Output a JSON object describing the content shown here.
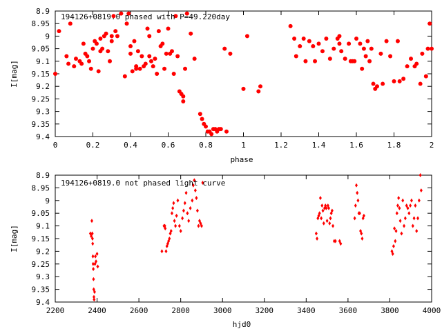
{
  "chart_data": [
    {
      "type": "scatter",
      "title": "194126+0819.0 phased with P=49.220day",
      "xlabel": "phase",
      "ylabel": "I[mag]",
      "xlim": [
        0,
        2
      ],
      "ylim": [
        9.4,
        8.9
      ],
      "y_inverted": true,
      "xticks": [
        "0",
        "0.2",
        "0.4",
        "0.6",
        "0.8",
        "1",
        "1.2",
        "1.4",
        "1.6",
        "1.8",
        "2"
      ],
      "yticks": [
        "8.9",
        "8.95",
        "9",
        "9.05",
        "9.1",
        "9.15",
        "9.2",
        "9.25",
        "9.3",
        "9.35",
        "9.4"
      ],
      "marker": "filled-circle",
      "color": "#ff0000",
      "grid": false,
      "series": [
        {
          "x": [
            0.0,
            0.02,
            0.06,
            0.07,
            0.08,
            0.1,
            0.11,
            0.13,
            0.14,
            0.15,
            0.16,
            0.17,
            0.18,
            0.19,
            0.2,
            0.21,
            0.22,
            0.23,
            0.24,
            0.24,
            0.25,
            0.26,
            0.27,
            0.28,
            0.29,
            0.3,
            0.3,
            0.31,
            0.32,
            0.33,
            0.35,
            0.37,
            0.38,
            0.39,
            0.4,
            0.4,
            0.41,
            0.42,
            0.43,
            0.43,
            0.44,
            0.45,
            0.46,
            0.47,
            0.48,
            0.49,
            0.5,
            0.5,
            0.51,
            0.52,
            0.53,
            0.54,
            0.55,
            0.56,
            0.57,
            0.58,
            0.59,
            0.6,
            0.61,
            0.62,
            0.63,
            0.64,
            0.65,
            0.66,
            0.67,
            0.68,
            0.68,
            0.69,
            0.7,
            0.72,
            0.74,
            0.77,
            0.78,
            0.79,
            0.8,
            0.81,
            0.82,
            0.83,
            0.84,
            0.85,
            0.86,
            0.87,
            0.88,
            0.9,
            0.91,
            0.93,
            1.0,
            1.02,
            1.08,
            1.09
          ],
          "y": [
            9.15,
            8.98,
            9.08,
            9.11,
            8.95,
            9.12,
            9.09,
            9.1,
            9.11,
            9.03,
            9.07,
            9.08,
            9.1,
            9.13,
            9.05,
            9.02,
            9.03,
            9.14,
            9.01,
            9.06,
            9.05,
            9.0,
            8.99,
            9.06,
            9.1,
            9.0,
            9.02,
            8.92,
            8.98,
            9.0,
            8.91,
            9.16,
            8.95,
            8.91,
            9.04,
            9.07,
            9.14,
            9.02,
            9.12,
            9.13,
            9.06,
            9.13,
            9.08,
            9.12,
            9.11,
            8.97,
            9.08,
            9.0,
            9.1,
            9.12,
            9.09,
            9.15,
            8.98,
            9.04,
            9.03,
            9.13,
            9.07,
            8.97,
            9.07,
            9.06,
            9.15,
            8.92,
            9.08,
            9.22,
            9.23,
            9.24,
            9.26,
            9.13,
            8.91,
            8.99,
            9.09,
            9.31,
            9.33,
            9.35,
            9.36,
            9.38,
            9.38,
            9.39,
            9.37,
            9.37,
            9.38,
            9.37,
            9.37,
            9.05,
            9.38,
            9.07,
            9.21,
            9.0,
            9.22,
            9.2
          ]
        },
        {
          "x": [
            1.25,
            1.27,
            1.28,
            1.3,
            1.32,
            1.33,
            1.35,
            1.37,
            1.38,
            1.4,
            1.42,
            1.44,
            1.46,
            1.48,
            1.5,
            1.51,
            1.51,
            1.52,
            1.54,
            1.56,
            1.57,
            1.58,
            1.59,
            1.6,
            1.62,
            1.63,
            1.64,
            1.65,
            1.66,
            1.67,
            1.68,
            1.69,
            1.7,
            1.71,
            1.73,
            1.74,
            1.76,
            1.78,
            1.8,
            1.82,
            1.83,
            1.85,
            1.87,
            1.89,
            1.91,
            1.92,
            1.94,
            1.95,
            1.97,
            1.98,
            1.99,
            2.0
          ],
          "y": [
            8.96,
            9.01,
            9.08,
            9.04,
            9.01,
            9.1,
            9.02,
            9.04,
            9.1,
            9.03,
            9.06,
            9.01,
            9.09,
            9.05,
            9.01,
            9.03,
            9.0,
            9.06,
            9.09,
            9.03,
            9.1,
            9.1,
            9.1,
            9.01,
            9.03,
            9.13,
            9.05,
            9.08,
            9.02,
            9.1,
            9.05,
            9.19,
            9.21,
            9.2,
            9.07,
            9.19,
            9.02,
            9.08,
            9.18,
            9.02,
            9.18,
            9.17,
            9.12,
            9.09,
            9.12,
            9.11,
            9.19,
            9.07,
            9.16,
            9.05,
            8.95,
            9.05
          ]
        }
      ]
    },
    {
      "type": "scatter",
      "title": "194126+0819.0 not phased light curve",
      "xlabel": "hjd0",
      "ylabel": "I[mag]",
      "xlim": [
        2200,
        4000
      ],
      "ylim": [
        9.4,
        8.9
      ],
      "y_inverted": true,
      "xticks": [
        "2200",
        "2400",
        "2600",
        "2800",
        "3000",
        "3200",
        "3400",
        "3600",
        "3800",
        "4000"
      ],
      "yticks": [
        "8.9",
        "8.95",
        "9",
        "9.05",
        "9.1",
        "9.15",
        "9.2",
        "9.25",
        "9.3",
        "9.35",
        "9.4"
      ],
      "marker": "filled-diamond",
      "color": "#ff0000",
      "grid": false,
      "series": [
        {
          "x": [
            2368,
            2372,
            2375,
            2377,
            2378,
            2379,
            2380,
            2381,
            2382,
            2383,
            2384,
            2385,
            2386,
            2388,
            2390,
            2392,
            2395,
            2400,
            2403,
            2710,
            2720,
            2724,
            2726,
            2730,
            2734,
            2738,
            2742,
            2746,
            2750,
            2754,
            2758,
            2762,
            2766,
            2770,
            2775,
            2780,
            2786,
            2794,
            2800,
            2808,
            2814,
            2820,
            2826,
            2832,
            2838,
            2846,
            2855,
            2860,
            2865,
            2870,
            2875,
            2880,
            2885,
            2890,
            2895,
            2900,
            2905,
            3448,
            3452,
            3456,
            3460,
            3464,
            3468,
            3472,
            3476,
            3480,
            3484,
            3488,
            3492,
            3496,
            3500,
            3504,
            3508,
            3512,
            3516,
            3520,
            3524,
            3528,
            3534,
            3540,
            3560,
            3565,
            3632,
            3636,
            3640,
            3644,
            3648,
            3652,
            3656,
            3660,
            3664,
            3668,
            3672,
            3676,
            3810,
            3814,
            3818,
            3822,
            3826,
            3830,
            3834,
            3838,
            3842,
            3846,
            3850,
            3856,
            3862,
            3868,
            3874,
            3880,
            3886,
            3892,
            3898,
            3904,
            3910,
            3916,
            3922,
            3928,
            3934,
            3940,
            3946,
            3950
          ],
          "y": [
            9.13,
            9.14,
            9.08,
            9.13,
            9.15,
            9.17,
            9.22,
            9.25,
            9.27,
            9.31,
            9.35,
            9.38,
            9.39,
            9.36,
            9.25,
            9.22,
            9.24,
            9.21,
            9.26,
            9.2,
            9.1,
            9.1,
            9.11,
            9.2,
            9.18,
            9.17,
            9.16,
            9.15,
            9.13,
            9.12,
            9.05,
            9.03,
            9.01,
            9.08,
            9.1,
            9.06,
            9.0,
            9.1,
            9.12,
            9.07,
            9.04,
            9.01,
            8.97,
            9.05,
            9.08,
            9.03,
            9.0,
            8.94,
            8.92,
            8.96,
            8.99,
            9.04,
            9.1,
            9.08,
            9.09,
            9.1,
            8.93,
            9.13,
            9.15,
            9.07,
            9.06,
            9.05,
            8.99,
            9.07,
            9.02,
            9.04,
            9.09,
            9.03,
            9.02,
            9.03,
            9.08,
            9.02,
            9.03,
            9.09,
            9.07,
            9.05,
            9.04,
            9.1,
            9.16,
            9.16,
            9.16,
            9.17,
            9.07,
            9.02,
            8.94,
            8.97,
            9.0,
            9.05,
            9.05,
            9.12,
            9.13,
            9.15,
            9.07,
            9.06,
            9.2,
            9.21,
            9.18,
            9.11,
            9.16,
            9.12,
            9.05,
            9.02,
            8.99,
            9.03,
            9.08,
            9.13,
            9.0,
            9.1,
            9.07,
            9.02,
            9.03,
            9.05,
            9.02,
            9.0,
            9.1,
            9.07,
            9.02,
            9.12,
            9.07,
            9.0,
            8.9,
            8.96
          ]
        }
      ]
    }
  ]
}
